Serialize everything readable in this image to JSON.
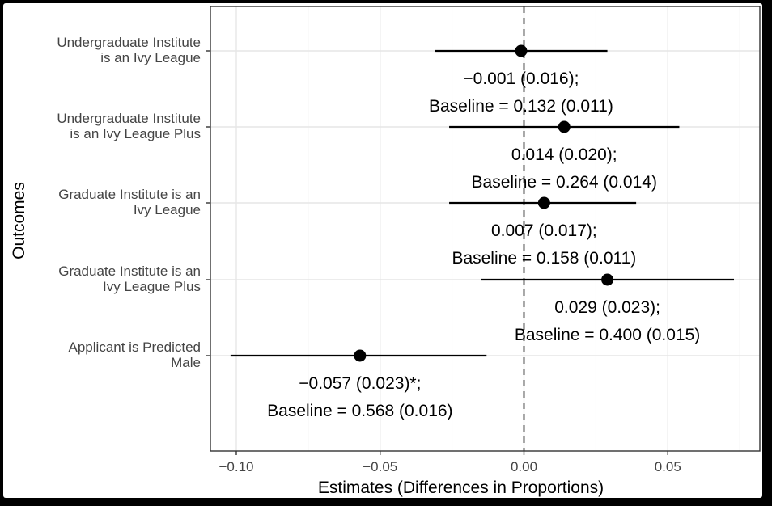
{
  "chart_data": {
    "type": "forest",
    "xlabel": "Estimates (Differences in Proportions)",
    "ylabel": "Outcomes",
    "xlim": [
      -0.109,
      0.082
    ],
    "xticks": [
      -0.1,
      -0.05,
      0.0,
      0.05
    ],
    "xtick_labels": [
      "−0.10",
      "−0.05",
      "0.00",
      "0.05"
    ],
    "reference_line": 0.0,
    "grid": true,
    "rows": [
      {
        "label_lines": [
          "Undergraduate Institute",
          "is an Ivy League"
        ],
        "estimate": -0.001,
        "low": -0.031,
        "high": 0.029,
        "annotation_lines": [
          "−0.001 (0.016);",
          "Baseline = 0.132 (0.011)"
        ]
      },
      {
        "label_lines": [
          "Undergraduate Institute",
          "is an Ivy League Plus"
        ],
        "estimate": 0.014,
        "low": -0.026,
        "high": 0.054,
        "annotation_lines": [
          "0.014 (0.020);",
          "Baseline = 0.264 (0.014)"
        ]
      },
      {
        "label_lines": [
          "Graduate Institute is an",
          "Ivy League"
        ],
        "estimate": 0.007,
        "low": -0.026,
        "high": 0.039,
        "annotation_lines": [
          "0.007 (0.017);",
          "Baseline = 0.158 (0.011)"
        ]
      },
      {
        "label_lines": [
          "Graduate Institute is an",
          "Ivy League Plus"
        ],
        "estimate": 0.029,
        "low": -0.015,
        "high": 0.073,
        "annotation_lines": [
          "0.029 (0.023);",
          "Baseline = 0.400 (0.015)"
        ]
      },
      {
        "label_lines": [
          "Applicant is Predicted",
          "Male"
        ],
        "estimate": -0.057,
        "low": -0.102,
        "high": -0.013,
        "annotation_lines": [
          "−0.057 (0.023)*;",
          "Baseline = 0.568 (0.016)"
        ]
      }
    ]
  }
}
